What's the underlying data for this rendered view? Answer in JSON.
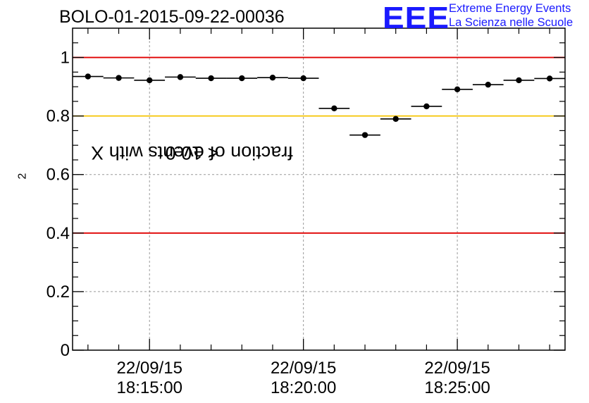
{
  "chart_data": {
    "type": "scatter",
    "title": "BOLO-01-2015-09-22-00036",
    "ylabel_main": "fraction of events with X",
    "ylabel_sup": "2",
    "ylabel_tail": " < 10.0",
    "ylim": [
      0,
      1.1
    ],
    "yticks": [
      {
        "v": 0,
        "label": "0"
      },
      {
        "v": 0.2,
        "label": "0.2"
      },
      {
        "v": 0.4,
        "label": "0.4"
      },
      {
        "v": 0.6,
        "label": "0.6"
      },
      {
        "v": 0.8,
        "label": "0.8"
      },
      {
        "v": 1.0,
        "label": "1"
      }
    ],
    "xlim_minutes": [
      12.5,
      28.5
    ],
    "xticks": [
      {
        "m": 15,
        "date": "22/09/15",
        "time": "18:15:00"
      },
      {
        "m": 20,
        "date": "22/09/15",
        "time": "18:20:00"
      },
      {
        "m": 25,
        "date": "22/09/15",
        "time": "18:25:00"
      }
    ],
    "grid": true,
    "reference_lines": [
      {
        "y": 1.0,
        "color": "#e00000"
      },
      {
        "y": 0.8,
        "color": "#f5c400"
      },
      {
        "y": 0.4,
        "color": "#e00000"
      }
    ],
    "points": [
      {
        "x": 13.0,
        "y": 0.935
      },
      {
        "x": 14.0,
        "y": 0.93
      },
      {
        "x": 15.0,
        "y": 0.922
      },
      {
        "x": 16.0,
        "y": 0.933
      },
      {
        "x": 17.0,
        "y": 0.929
      },
      {
        "x": 18.0,
        "y": 0.929
      },
      {
        "x": 19.0,
        "y": 0.931
      },
      {
        "x": 20.0,
        "y": 0.929
      },
      {
        "x": 21.0,
        "y": 0.826
      },
      {
        "x": 22.0,
        "y": 0.735
      },
      {
        "x": 23.0,
        "y": 0.79
      },
      {
        "x": 24.0,
        "y": 0.833
      },
      {
        "x": 25.0,
        "y": 0.891
      },
      {
        "x": 26.0,
        "y": 0.907
      },
      {
        "x": 27.0,
        "y": 0.922
      },
      {
        "x": 28.0,
        "y": 0.928
      }
    ],
    "bin_half_width_minutes": 0.5
  },
  "logo": {
    "letters": "EEE",
    "line1": "Extreme Energy Events",
    "line2": "La Scienza nelle Scuole"
  }
}
